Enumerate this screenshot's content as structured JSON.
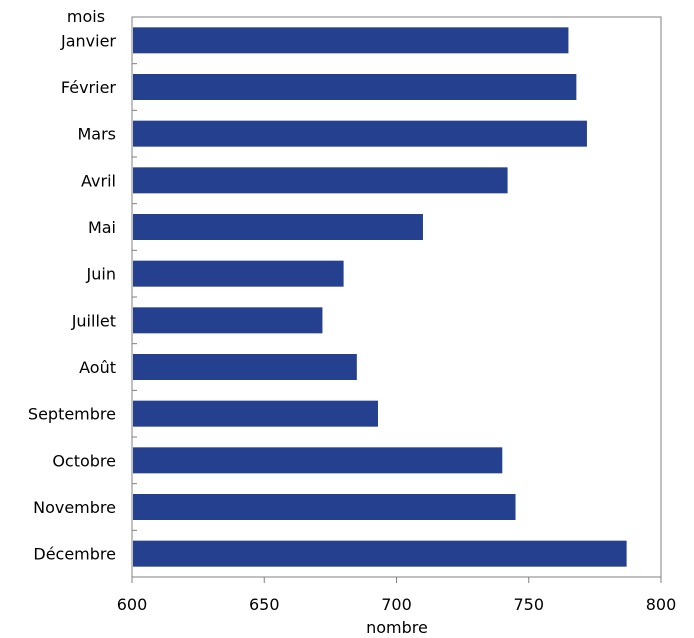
{
  "chart_data": {
    "type": "bar",
    "orientation": "horizontal",
    "categories": [
      "Janvier",
      "Février",
      "Mars",
      "Avril",
      "Mai",
      "Juin",
      "Juillet",
      "Août",
      "Septembre",
      "Octobre",
      "Novembre",
      "Décembre"
    ],
    "values": [
      765,
      768,
      772,
      742,
      710,
      680,
      672,
      685,
      693,
      740,
      745,
      787
    ],
    "xlabel": "nombre",
    "ylabel": "mois",
    "xlim": [
      600,
      800
    ],
    "xticks": [
      600,
      650,
      700,
      750,
      800
    ],
    "tick_labels": [
      "600",
      "650",
      "700",
      "750",
      "800"
    ],
    "grid": false,
    "legend": "none",
    "bar_color": "#24408e",
    "axis_color": "#808080"
  }
}
